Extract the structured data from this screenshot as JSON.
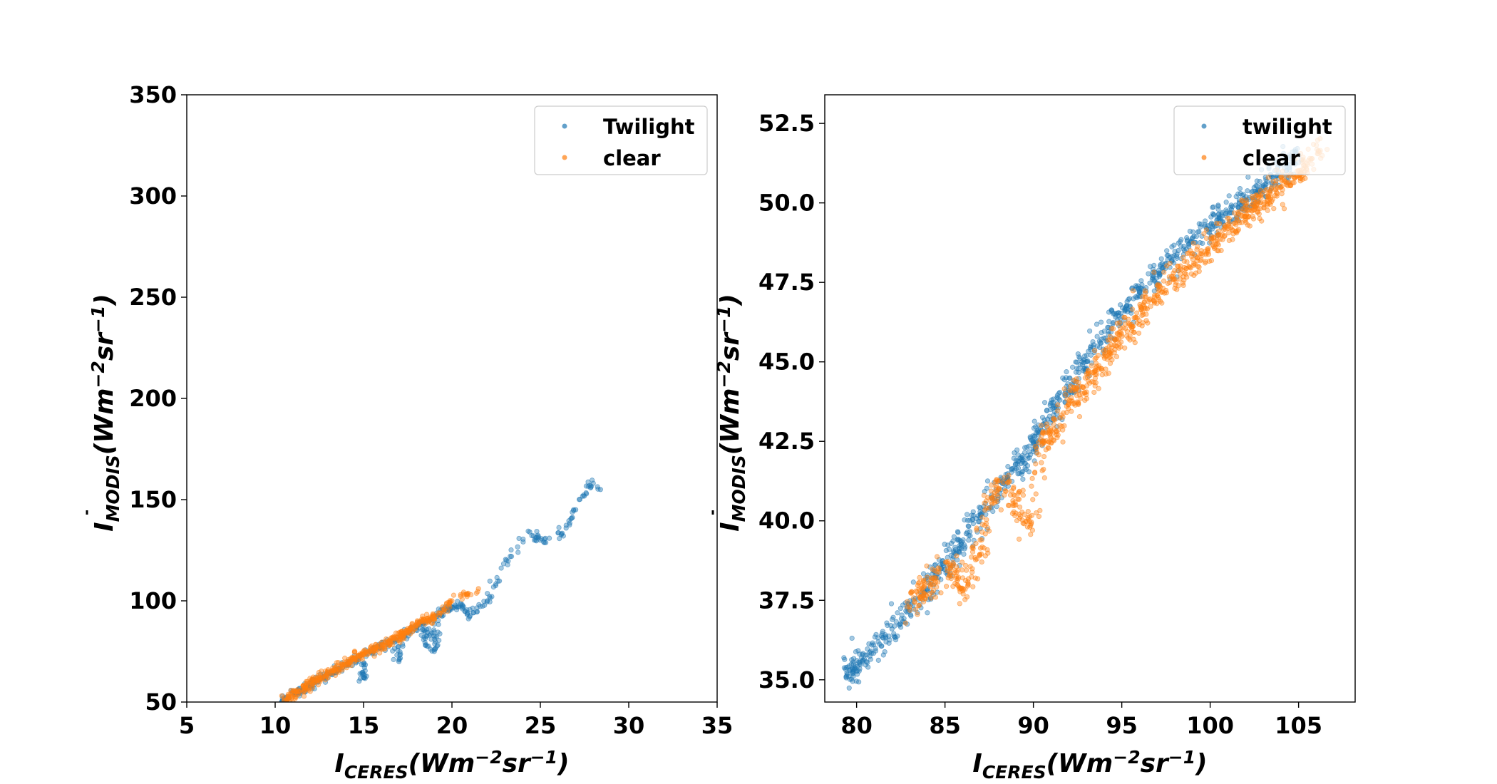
{
  "chart_data": [
    {
      "type": "scatter",
      "title": "",
      "xlabel": "I_CERES(Wm^-2 sr^-1)",
      "ylabel": "Ī_MODIS(Wm^-2 sr^-1)",
      "xlim": [
        5,
        35
      ],
      "ylim": [
        50,
        350
      ],
      "xticks": [
        5,
        10,
        15,
        20,
        25,
        30,
        35
      ],
      "yticks": [
        50,
        100,
        150,
        200,
        250,
        300,
        350
      ],
      "grid": false,
      "legend_position": "top-right",
      "legend_labels": [
        "Twilight",
        "clear"
      ],
      "series": [
        {
          "name": "Twilight",
          "color": "#1f77b4",
          "x": [
            10.4,
            10.8,
            11.2,
            11.6,
            12.0,
            12.4,
            12.8,
            13.2,
            13.6,
            14.0,
            14.4,
            14.8,
            15.2,
            15.6,
            16.0,
            16.4,
            16.8,
            17.2,
            17.6,
            18.0,
            18.4,
            18.8,
            19.2,
            19.6,
            20.0,
            20.5,
            21.0,
            22.0,
            23.3,
            24.4,
            25.0,
            26.2,
            27.0,
            27.8,
            28.4,
            19.0,
            18.5,
            17.0,
            15.0
          ],
          "y": [
            50.5,
            52.0,
            54.0,
            56.0,
            58.0,
            60.0,
            62.5,
            64.5,
            66.5,
            68.5,
            70.5,
            72.5,
            74.0,
            75.5,
            77.0,
            79.0,
            81.0,
            83.0,
            85.0,
            87.0,
            89.0,
            91.0,
            93.0,
            95.0,
            97.0,
            98.0,
            92.0,
            100.0,
            122.0,
            134.0,
            130.0,
            133.0,
            145.0,
            157.0,
            155.0,
            75.0,
            78.0,
            70.0,
            62.0
          ]
        },
        {
          "name": "clear",
          "color": "#ff7f0e",
          "x": [
            10.5,
            10.9,
            11.3,
            11.7,
            12.1,
            12.5,
            12.9,
            13.3,
            13.7,
            14.1,
            14.5,
            14.9,
            15.3,
            15.7,
            16.1,
            16.5,
            16.9,
            17.3,
            17.7,
            18.1,
            18.5,
            18.9,
            19.3,
            20.0,
            21.5
          ],
          "y": [
            51.0,
            53.0,
            55.0,
            57.0,
            59.0,
            61.0,
            63.5,
            65.5,
            67.5,
            69.5,
            71.5,
            73.5,
            75.0,
            76.5,
            78.0,
            80.0,
            82.0,
            84.0,
            86.0,
            88.0,
            90.0,
            92.0,
            94.0,
            100.0,
            106.0
          ]
        }
      ]
    },
    {
      "type": "scatter",
      "title": "",
      "xlabel": "I_CERES(Wm^-2 sr^-1)",
      "ylabel": "Ī_MODIS(Wm^-2 sr^-1)",
      "xlim": [
        78.2,
        108.2
      ],
      "ylim": [
        34.3,
        53.4
      ],
      "xticks": [
        80,
        85,
        90,
        95,
        100,
        105
      ],
      "yticks": [
        35.0,
        37.5,
        40.0,
        42.5,
        45.0,
        47.5,
        50.0,
        52.5
      ],
      "ytick_labels": [
        "35.0",
        "37.5",
        "40.0",
        "42.5",
        "45.0",
        "47.5",
        "50.0",
        "52.5"
      ],
      "grid": false,
      "legend_position": "top-right",
      "legend_labels": [
        "twilight",
        "clear"
      ],
      "series": [
        {
          "name": "twilight",
          "color": "#1f77b4",
          "x": [
            79.6,
            79.8,
            80.8,
            82.0,
            83.0,
            84.0,
            84.8,
            85.5,
            86.2,
            87.0,
            87.8,
            88.5,
            89.3,
            90.0,
            90.8,
            91.5,
            92.3,
            93.0,
            93.8,
            94.5,
            95.2,
            96.0,
            96.8,
            97.5,
            98.2,
            99.0,
            99.8,
            100.5,
            101.2,
            102.0,
            102.8,
            103.5,
            104.2,
            105.0
          ],
          "y": [
            35.3,
            35.2,
            35.9,
            36.6,
            37.2,
            37.8,
            38.5,
            39.0,
            39.6,
            40.2,
            40.7,
            41.3,
            41.8,
            42.5,
            43.2,
            43.8,
            44.4,
            45.0,
            45.6,
            46.2,
            46.7,
            47.2,
            47.7,
            48.1,
            48.5,
            48.9,
            49.2,
            49.5,
            49.8,
            50.1,
            50.4,
            50.8,
            51.1,
            51.5
          ]
        },
        {
          "name": "clear",
          "color": "#ff7f0e",
          "x": [
            83.0,
            83.8,
            84.5,
            85.3,
            86.0,
            86.8,
            87.5,
            88.3,
            89.0,
            89.8,
            90.5,
            91.3,
            92.0,
            92.8,
            93.5,
            94.3,
            95.0,
            95.8,
            96.5,
            97.3,
            98.0,
            98.8,
            99.5,
            100.3,
            101.0,
            101.8,
            102.5,
            103.3,
            104.0,
            104.8,
            105.5,
            106.2
          ],
          "y": [
            37.3,
            37.7,
            38.2,
            38.6,
            37.8,
            38.8,
            40.4,
            41.2,
            40.5,
            39.8,
            42.5,
            42.8,
            43.7,
            44.2,
            44.6,
            45.3,
            45.8,
            46.4,
            46.9,
            47.2,
            47.6,
            48.0,
            48.4,
            48.8,
            49.2,
            49.6,
            49.9,
            50.2,
            50.5,
            50.8,
            51.2,
            51.6
          ]
        }
      ]
    }
  ]
}
